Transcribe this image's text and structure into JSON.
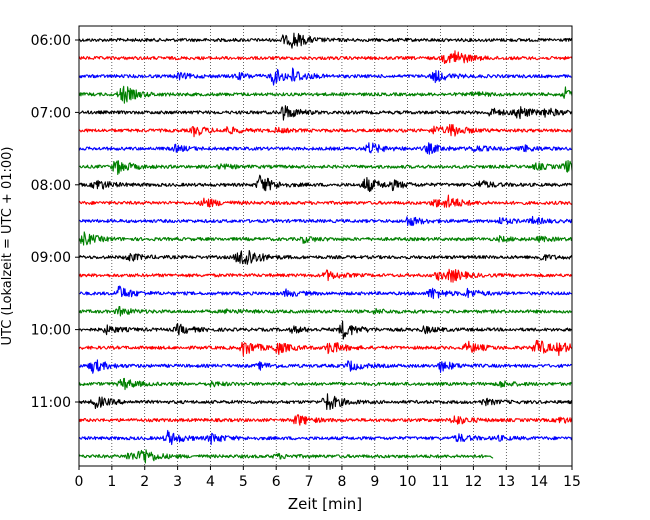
{
  "chart_data": {
    "type": "line",
    "title": "",
    "xlabel": "Zeit  [min]",
    "ylabel": "UTC (Lokalzeit = UTC + 01:00)",
    "xlim": [
      0,
      15
    ],
    "x_ticks": [
      0,
      1,
      2,
      3,
      4,
      5,
      6,
      7,
      8,
      9,
      10,
      11,
      12,
      13,
      14,
      15
    ],
    "x_tick_labels": [
      "0",
      "1",
      "2",
      "3",
      "4",
      "5",
      "6",
      "7",
      "8",
      "9",
      "10",
      "11",
      "12",
      "13",
      "14",
      "15"
    ],
    "y_ticks": [
      "06:00",
      "07:00",
      "08:00",
      "09:00",
      "10:00",
      "11:00"
    ],
    "grid": {
      "x": true,
      "y": false,
      "style": "dotted"
    },
    "trace_colors": [
      "#000000",
      "#ff0000",
      "#0000ff",
      "#008000"
    ],
    "traces": [
      {
        "start": "06:00",
        "end_minute": 15,
        "color": "#000000",
        "events": [
          {
            "t": 6.5,
            "a": 7
          },
          {
            "t": 6.2,
            "a": 4
          }
        ]
      },
      {
        "start": "06:15",
        "end_minute": 15,
        "color": "#ff0000",
        "events": [
          {
            "t": 11.4,
            "a": 7
          },
          {
            "t": 11.1,
            "a": 4
          }
        ]
      },
      {
        "start": "06:30",
        "end_minute": 15,
        "color": "#0000ff",
        "events": [
          {
            "t": 5.9,
            "a": 8
          },
          {
            "t": 6.5,
            "a": 6
          },
          {
            "t": 3.0,
            "a": 3
          },
          {
            "t": 4.8,
            "a": 3
          },
          {
            "t": 10.8,
            "a": 6
          }
        ]
      },
      {
        "start": "06:45",
        "end_minute": 15,
        "color": "#008000",
        "events": [
          {
            "t": 1.3,
            "a": 10
          },
          {
            "t": 14.8,
            "a": 6
          },
          {
            "t": 12.0,
            "a": 2
          }
        ]
      },
      {
        "start": "07:00",
        "end_minute": 15,
        "color": "#000000",
        "events": [
          {
            "t": 6.2,
            "a": 8
          },
          {
            "t": 13.3,
            "a": 7
          },
          {
            "t": 12.5,
            "a": 4
          },
          {
            "t": 14.2,
            "a": 4
          }
        ]
      },
      {
        "start": "07:15",
        "end_minute": 15,
        "color": "#ff0000",
        "events": [
          {
            "t": 3.5,
            "a": 5
          },
          {
            "t": 4.5,
            "a": 3
          },
          {
            "t": 11.3,
            "a": 6
          },
          {
            "t": 10.8,
            "a": 4
          },
          {
            "t": 6.0,
            "a": 2
          }
        ]
      },
      {
        "start": "07:30",
        "end_minute": 15,
        "color": "#0000ff",
        "events": [
          {
            "t": 8.8,
            "a": 6
          },
          {
            "t": 10.6,
            "a": 5
          },
          {
            "t": 2.9,
            "a": 3
          },
          {
            "t": 12.0,
            "a": 3
          },
          {
            "t": 13.5,
            "a": 3
          }
        ]
      },
      {
        "start": "07:45",
        "end_minute": 15,
        "color": "#008000",
        "events": [
          {
            "t": 1.1,
            "a": 8
          },
          {
            "t": 14.8,
            "a": 6
          },
          {
            "t": 13.9,
            "a": 3
          },
          {
            "t": 4.3,
            "a": 2
          }
        ]
      },
      {
        "start": "08:00",
        "end_minute": 15,
        "color": "#000000",
        "events": [
          {
            "t": 0.5,
            "a": 6
          },
          {
            "t": 5.5,
            "a": 10
          },
          {
            "t": 8.7,
            "a": 8
          },
          {
            "t": 9.5,
            "a": 4
          },
          {
            "t": 12.2,
            "a": 4
          }
        ]
      },
      {
        "start": "08:15",
        "end_minute": 15,
        "color": "#ff0000",
        "events": [
          {
            "t": 3.8,
            "a": 5
          },
          {
            "t": 11.2,
            "a": 6
          },
          {
            "t": 10.8,
            "a": 4
          }
        ]
      },
      {
        "start": "08:30",
        "end_minute": 15,
        "color": "#0000ff",
        "events": [
          {
            "t": 10.0,
            "a": 5
          },
          {
            "t": 12.8,
            "a": 3
          },
          {
            "t": 13.8,
            "a": 3
          }
        ]
      },
      {
        "start": "08:45",
        "end_minute": 15,
        "color": "#008000",
        "events": [
          {
            "t": 0.1,
            "a": 7
          },
          {
            "t": 6.8,
            "a": 3
          },
          {
            "t": 12.8,
            "a": 2
          },
          {
            "t": 14.0,
            "a": 2
          }
        ]
      },
      {
        "start": "09:00",
        "end_minute": 15,
        "color": "#000000",
        "events": [
          {
            "t": 5.0,
            "a": 10
          },
          {
            "t": 4.8,
            "a": 5
          },
          {
            "t": 1.5,
            "a": 4
          },
          {
            "t": 14.0,
            "a": 3
          }
        ]
      },
      {
        "start": "09:15",
        "end_minute": 15,
        "color": "#ff0000",
        "events": [
          {
            "t": 7.5,
            "a": 5
          },
          {
            "t": 11.3,
            "a": 6
          },
          {
            "t": 10.9,
            "a": 4
          }
        ]
      },
      {
        "start": "09:30",
        "end_minute": 15,
        "color": "#0000ff",
        "events": [
          {
            "t": 1.2,
            "a": 7
          },
          {
            "t": 10.7,
            "a": 6
          },
          {
            "t": 11.8,
            "a": 4
          },
          {
            "t": 6.3,
            "a": 3
          }
        ]
      },
      {
        "start": "09:45",
        "end_minute": 15,
        "color": "#008000",
        "events": [
          {
            "t": 1.2,
            "a": 4
          },
          {
            "t": 4.5,
            "a": 2
          },
          {
            "t": 9.0,
            "a": 2
          }
        ]
      },
      {
        "start": "10:00",
        "end_minute": 15,
        "color": "#000000",
        "events": [
          {
            "t": 8.0,
            "a": 9
          },
          {
            "t": 3.0,
            "a": 5
          },
          {
            "t": 0.8,
            "a": 4
          },
          {
            "t": 6.5,
            "a": 3
          },
          {
            "t": 10.5,
            "a": 3
          }
        ]
      },
      {
        "start": "10:15",
        "end_minute": 15,
        "color": "#ff0000",
        "events": [
          {
            "t": 5.0,
            "a": 8
          },
          {
            "t": 6.0,
            "a": 6
          },
          {
            "t": 7.6,
            "a": 7
          },
          {
            "t": 11.8,
            "a": 6
          },
          {
            "t": 13.9,
            "a": 9
          },
          {
            "t": 14.6,
            "a": 5
          }
        ]
      },
      {
        "start": "10:30",
        "end_minute": 15,
        "color": "#0000ff",
        "events": [
          {
            "t": 0.4,
            "a": 7
          },
          {
            "t": 8.2,
            "a": 5
          },
          {
            "t": 11.0,
            "a": 5
          },
          {
            "t": 5.5,
            "a": 3
          }
        ]
      },
      {
        "start": "10:45",
        "end_minute": 15,
        "color": "#008000",
        "events": [
          {
            "t": 1.3,
            "a": 6
          },
          {
            "t": 12.8,
            "a": 3
          },
          {
            "t": 4.0,
            "a": 2
          }
        ]
      },
      {
        "start": "11:00",
        "end_minute": 15,
        "color": "#000000",
        "events": [
          {
            "t": 0.5,
            "a": 6
          },
          {
            "t": 7.5,
            "a": 10
          },
          {
            "t": 12.3,
            "a": 3
          }
        ]
      },
      {
        "start": "11:15",
        "end_minute": 15,
        "color": "#ff0000",
        "events": [
          {
            "t": 6.6,
            "a": 6
          },
          {
            "t": 11.4,
            "a": 5
          },
          {
            "t": 14.6,
            "a": 3
          }
        ]
      },
      {
        "start": "11:30",
        "end_minute": 15,
        "color": "#0000ff",
        "events": [
          {
            "t": 2.7,
            "a": 7
          },
          {
            "t": 4.0,
            "a": 5
          },
          {
            "t": 11.5,
            "a": 4
          },
          {
            "t": 12.7,
            "a": 2
          }
        ]
      },
      {
        "start": "11:45",
        "end_minute": 12.6,
        "color": "#008000",
        "events": [
          {
            "t": 1.9,
            "a": 8
          },
          {
            "t": 1.5,
            "a": 4
          },
          {
            "t": 6.0,
            "a": 2
          }
        ]
      }
    ]
  }
}
